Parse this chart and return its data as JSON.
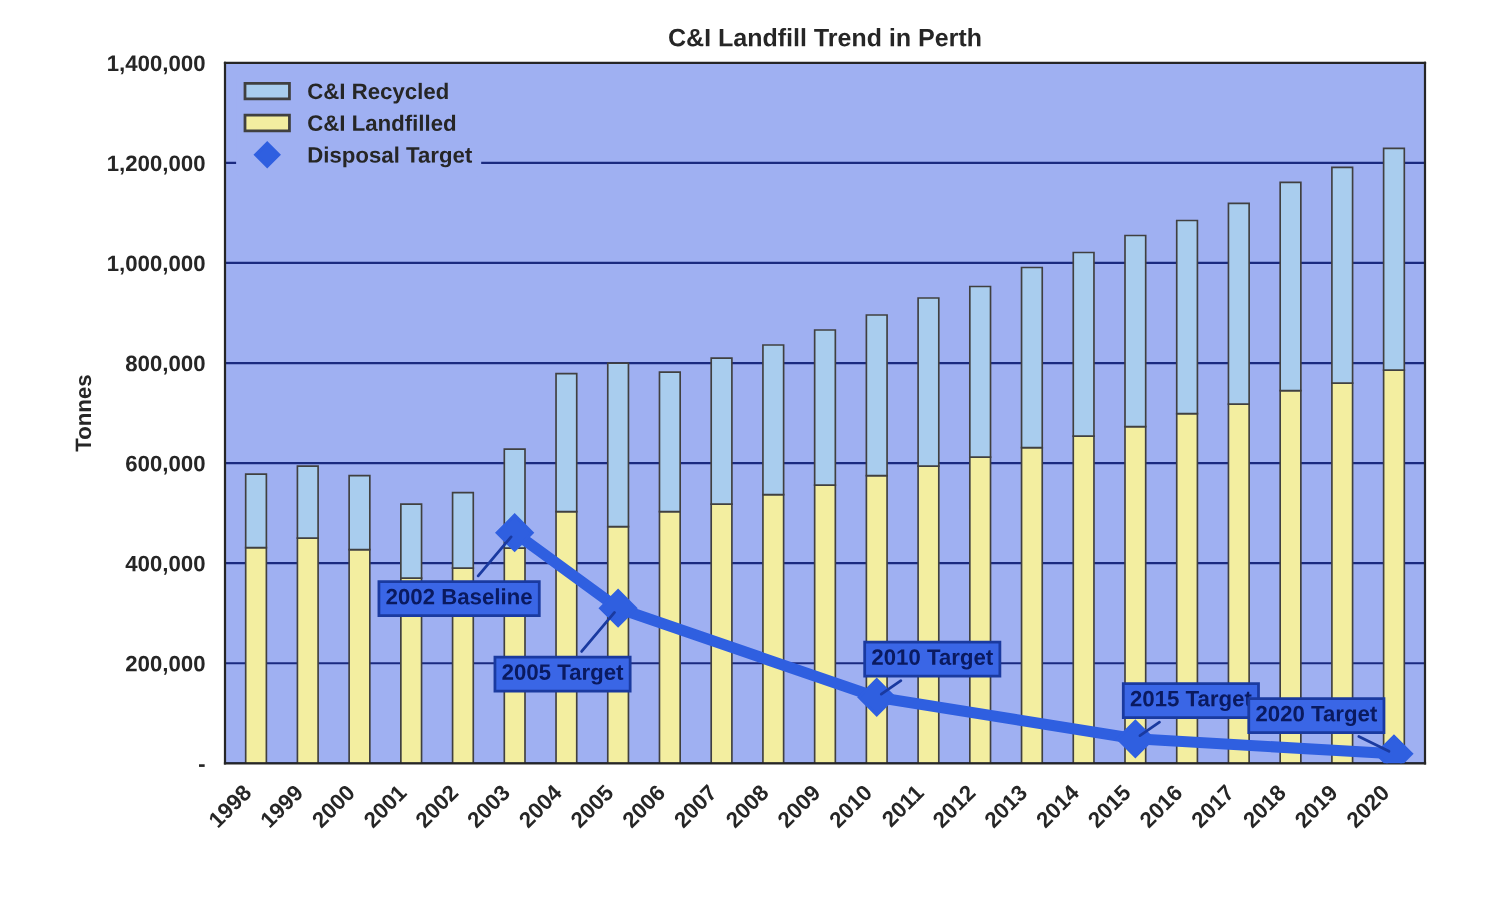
{
  "chart_data": {
    "type": "bar",
    "title": "C&I Landfill Trend in Perth",
    "ylabel": "Tonnes",
    "stacked": true,
    "categories": [
      "1998",
      "1999",
      "2000",
      "2001",
      "2002",
      "2003",
      "2004",
      "2005",
      "2006",
      "2007",
      "2008",
      "2009",
      "2010",
      "2011",
      "2012",
      "2013",
      "2014",
      "2015",
      "2016",
      "2017",
      "2018",
      "2019",
      "2020"
    ],
    "series": [
      {
        "name": "C&I Landfilled",
        "color": "#f3eea0",
        "values": [
          431000,
          450000,
          427000,
          370000,
          390000,
          430000,
          503000,
          473000,
          503000,
          518000,
          537000,
          556000,
          575000,
          594000,
          612000,
          631000,
          654000,
          673000,
          699000,
          718000,
          745000,
          760000,
          786000
        ]
      },
      {
        "name": "C&I Recycled",
        "color": "#a9cdee",
        "values": [
          147000,
          144000,
          148000,
          148000,
          151000,
          198000,
          276000,
          327000,
          279000,
          292000,
          299000,
          310000,
          321000,
          336000,
          341000,
          360000,
          367000,
          382000,
          386000,
          401000,
          416000,
          431000,
          443000
        ]
      },
      {
        "name": "Disposal Target",
        "type": "line",
        "color": "#2f5fe0",
        "marker": "diamond",
        "values": [
          null,
          null,
          null,
          null,
          null,
          461000,
          null,
          310000,
          null,
          null,
          null,
          null,
          132000,
          null,
          null,
          null,
          null,
          49000,
          null,
          null,
          null,
          null,
          19000
        ]
      }
    ],
    "annotations": [
      {
        "text": "2002 Baseline",
        "x": "2003",
        "y": 461000
      },
      {
        "text": "2005 Target",
        "x": "2005",
        "y": 310000
      },
      {
        "text": "2010 Target",
        "x": "2010",
        "y": 132000
      },
      {
        "text": "2015 Target",
        "x": "2015",
        "y": 49000
      },
      {
        "text": "2020 Target",
        "x": "2020",
        "y": 19000
      }
    ],
    "ylim": [
      0,
      1400000
    ],
    "yticks": [
      {
        "value": 0,
        "label": "-"
      },
      {
        "value": 200000,
        "label": "200,000"
      },
      {
        "value": 400000,
        "label": "400,000"
      },
      {
        "value": 600000,
        "label": "600,000"
      },
      {
        "value": 800000,
        "label": "800,000"
      },
      {
        "value": 1000000,
        "label": "1,000,000"
      },
      {
        "value": 1200000,
        "label": "1,200,000"
      },
      {
        "value": 1400000,
        "label": "1,400,000"
      }
    ],
    "grid": "y",
    "legend": "top left"
  }
}
